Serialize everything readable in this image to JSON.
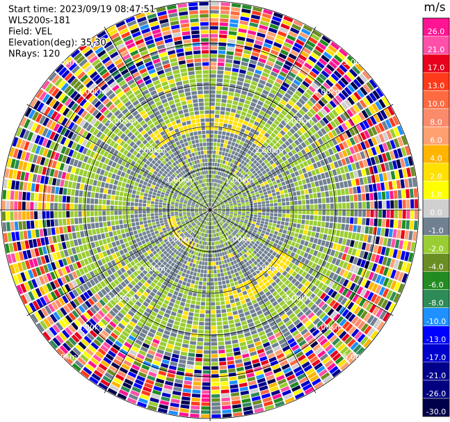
{
  "chart_data": {
    "type": "ppi",
    "header": [
      "Start time: 2023/09/19 08:47:51",
      "WLS200s-181",
      "Field: VEL",
      "Elevation(deg): 35.30",
      "NRays: 120"
    ],
    "nrays": 120,
    "unit": "m/s",
    "rlim": [
      0,
      5
    ],
    "range_rings": [
      {
        "value": 1,
        "label": "1.00km"
      },
      {
        "value": 2,
        "label": "2.00km"
      },
      {
        "value": 3,
        "label": "3.00km"
      },
      {
        "value": 4,
        "label": "4.00km"
      },
      {
        "value": 5,
        "label": "5.00km"
      }
    ],
    "colorbar_ticks": [
      {
        "value": 26,
        "label": "26.0"
      },
      {
        "value": 21,
        "label": "21.0"
      },
      {
        "value": 17,
        "label": "17.0"
      },
      {
        "value": 13,
        "label": "13.0"
      },
      {
        "value": 10,
        "label": "10.0"
      },
      {
        "value": 8,
        "label": "8.0"
      },
      {
        "value": 6,
        "label": "6.0"
      },
      {
        "value": 4,
        "label": "4.0"
      },
      {
        "value": 2,
        "label": "2.0"
      },
      {
        "value": 1,
        "label": "1.0"
      },
      {
        "value": 0,
        "label": "0.0"
      },
      {
        "value": -1,
        "label": "-1.0"
      },
      {
        "value": -2,
        "label": "-2.0"
      },
      {
        "value": -4,
        "label": "-4.0"
      },
      {
        "value": -6,
        "label": "-6.0"
      },
      {
        "value": -8,
        "label": "-8.0"
      },
      {
        "value": -10,
        "label": "-10.0"
      },
      {
        "value": -13,
        "label": "-13.0"
      },
      {
        "value": -17,
        "label": "-17.0"
      },
      {
        "value": -21,
        "label": "-21.0"
      },
      {
        "value": -26,
        "label": "-26.0"
      },
      {
        "value": -30,
        "label": "-30.0"
      }
    ],
    "colorbar_colors": [
      "#ff1493",
      "#ff4fa8",
      "#e8001c",
      "#ff3a1a",
      "#ff6a40",
      "#fa8a6a",
      "#ffa070",
      "#ffb400",
      "#ffe000",
      "#ffff00",
      "#d0d0d0",
      "#708090",
      "#9acd32",
      "#6b8e23",
      "#228b22",
      "#2e8b57",
      "#1e90ff",
      "#0000ff",
      "#0000cd",
      "#00008b",
      "#000080",
      "#00004a"
    ]
  }
}
